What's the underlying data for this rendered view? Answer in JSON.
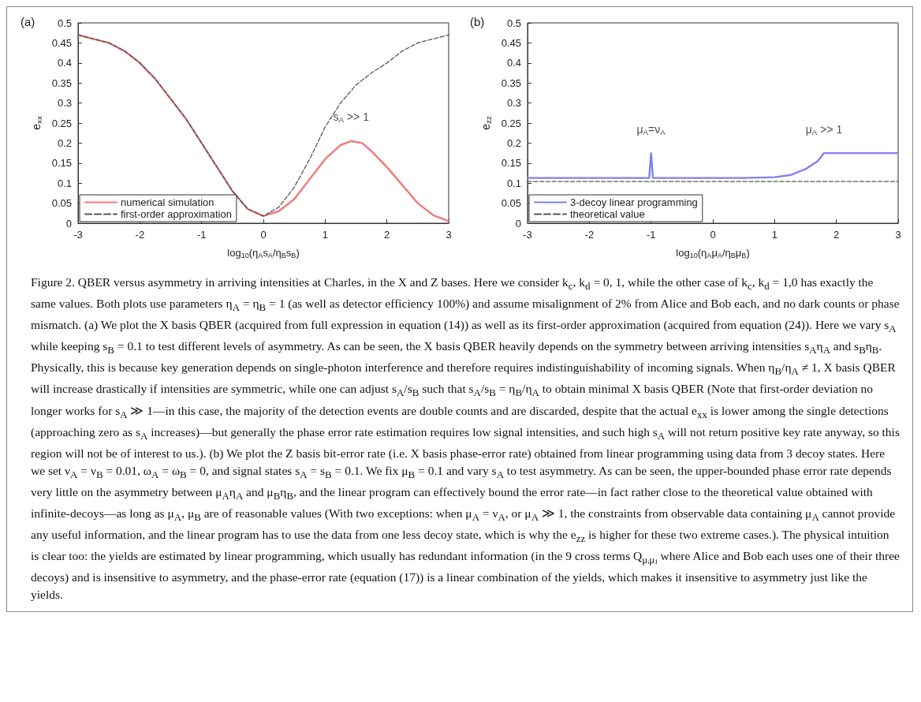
{
  "chart_data": [
    {
      "type": "line",
      "title": "(a)",
      "xlabel": "log$_{10}$(η$_{A}$s$_{A}$/η$_{B}$s$_{B}$)",
      "ylabel": "e$_{xx}$",
      "xlim": [
        -3,
        3
      ],
      "xticks": [
        -3,
        -2,
        -1,
        0,
        1,
        2,
        3
      ],
      "ylim": [
        0,
        0.5
      ],
      "yticks": [
        0,
        0.05,
        0.1,
        0.15,
        0.2,
        0.25,
        0.3,
        0.35,
        0.4,
        0.45,
        0.5
      ],
      "grid": false,
      "legend": "bottom left",
      "series": [
        {
          "name": "numerical simulation",
          "color": "#f07878",
          "line_style": "solid",
          "x": [
            -3,
            -2.75,
            -2.5,
            -2.25,
            -2,
            -1.75,
            -1.5,
            -1.25,
            -1,
            -0.75,
            -0.5,
            -0.25,
            0,
            0.25,
            0.5,
            0.75,
            1,
            1.25,
            1.42,
            1.6,
            1.75,
            2,
            2.25,
            2.5,
            2.75,
            3
          ],
          "values": [
            0.47,
            0.46,
            0.45,
            0.43,
            0.4,
            0.36,
            0.31,
            0.26,
            0.2,
            0.14,
            0.08,
            0.035,
            0.018,
            0.03,
            0.06,
            0.11,
            0.16,
            0.195,
            0.205,
            0.2,
            0.18,
            0.14,
            0.095,
            0.05,
            0.02,
            0.005
          ]
        },
        {
          "name": "first-order approximation",
          "color": "#555555",
          "line_style": "dashed",
          "x": [
            -3,
            -2.75,
            -2.5,
            -2.25,
            -2,
            -1.75,
            -1.5,
            -1.25,
            -1,
            -0.75,
            -0.5,
            -0.25,
            0,
            0.25,
            0.5,
            0.75,
            1,
            1.25,
            1.5,
            1.75,
            2,
            2.25,
            2.5,
            2.75,
            3
          ],
          "values": [
            0.47,
            0.46,
            0.45,
            0.43,
            0.4,
            0.36,
            0.31,
            0.26,
            0.2,
            0.14,
            0.08,
            0.035,
            0.018,
            0.04,
            0.09,
            0.16,
            0.24,
            0.3,
            0.345,
            0.375,
            0.4,
            0.43,
            0.45,
            0.46,
            0.47
          ]
        }
      ],
      "annotations": [
        {
          "text": "s$_{A}$ >> 1",
          "x": 1.42,
          "y": 0.205
        }
      ]
    },
    {
      "type": "line",
      "title": "(b)",
      "xlabel": "log$_{10}$(η$_{A}$μ$_{A}$/η$_{B}$μ$_{B}$)",
      "ylabel": "e$_{zz}$",
      "xlim": [
        -3,
        3
      ],
      "xticks": [
        -3,
        -2,
        -1,
        0,
        1,
        2,
        3
      ],
      "ylim": [
        0,
        0.5
      ],
      "yticks": [
        0,
        0.05,
        0.1,
        0.15,
        0.2,
        0.25,
        0.3,
        0.35,
        0.4,
        0.45,
        0.5
      ],
      "grid": false,
      "legend": "bottom left",
      "series": [
        {
          "name": "3-decoy linear programming",
          "color": "#8080f0",
          "line_style": "solid",
          "x": [
            -3,
            -2,
            -1.03,
            -1,
            -0.97,
            0,
            0.5,
            1,
            1.25,
            1.5,
            1.7,
            1.8,
            2,
            3
          ],
          "values": [
            0.113,
            0.113,
            0.113,
            0.175,
            0.113,
            0.113,
            0.113,
            0.115,
            0.12,
            0.135,
            0.155,
            0.175,
            0.175,
            0.175
          ]
        },
        {
          "name": "theoretical value",
          "color": "#555555",
          "line_style": "dashed",
          "x": [
            -3,
            3
          ],
          "values": [
            0.104,
            0.104
          ]
        }
      ],
      "annotations": [
        {
          "text": "μ$_{A}$=ν$_{A}$",
          "x": -1,
          "y": 0.175
        },
        {
          "text": "μ$_{A}$ >> 1",
          "x": 1.8,
          "y": 0.175
        },
        "Figure 2. QBER versus asymmetry in arriving intensities at Charles, in the X and Z bases. Here we consider k$_{c}$, k$_{d}$ = 0, 1, while the other case of k$_{c}$, k$_{d}$ = 1,0 has exactly the same values. Both plots use parameters η$_{A}$ = η$_{B}$ = 1 (as well as detector efficiency 100%) and assume misalignment of 2% from Alice and Bob each, and no dark counts or phase mismatch. (a) We plot the X basis QBER (acquired from full expression in equation (14)) as well as its first-order approximation (acquired from equation (24)). Here we vary s$_{A}$ while keeping s$_{B}$ = 0.1 to test different levels of asymmetry. As can be seen, the X basis QBER heavily depends on the symmetry between arriving intensities s$_{A}$η$_{A}$ and s$_{B}$η$_{B}$. Physically, this is because key generation depends on single-photon interference and therefore requires indistinguishability of incoming signals. When η$_{B}$/η$_{A}$ ≠ 1, X basis QBER will increase drastically if intensities are symmetric, while one can adjust s$_{A}$/s$_{B}$ such that s$_{A}$/s$_{B}$ = η$_{B}$/η$_{A}$ to obtain minimal X basis QBER (Note that first-order deviation no longer works for s$_{A}$ ≫ 1—in this case, the majority of the detection events are double counts and are discarded, despite that the actual e$_{xx}$ is lower among the single detections (approaching zero as s$_{A}$ increases)—but generally the phase error rate estimation requires low signal intensities, and such high s$_{A}$ will not return positive key rate anyway, so this region will not be of interest to us.). (b) We plot the Z basis bit-error rate (i.e. X basis phase-error rate) obtained from linear programming using data from 3 decoy states. Here we set ν$_{A}$ = ν$_{B}$ = 0.01, ω$_{A}$ = ω$_{B}$ = 0, and signal states s$_{A}$ = s$_{B}$ = 0.1. We fix μ$_{B}$ = 0.1 and vary s$_{A}$ to test asymmetry. As can be seen, the upper-bounded phase error rate depends very little on the asymmetry between μ$_{A}$η$_{A}$ and μ$_{B}$η$_{B}$, and the linear program can effectively bound the error rate—in fact rather close to the theoretical value obtained with infinite-decoys—as long as μ$_{A}$, μ$_{B}$ are of reasonable values (With two exceptions: when μ$_{A}$ = ν$_{A}$, or μ$_{A}$ ≫ 1, the constraints from observable data containing μ$_{A}$ cannot provide any useful information, and the linear program has to use the data from one less decoy state, which is why the e$_{zz}$ is higher for these two extreme cases.). The physical intuition is clear too: the yields are estimated by linear programming, which usually has redundant information (in the 9 cross terms Q$_{μᵢμⱼ}$ where Alice and Bob each uses one of their three decoys) and is insensitive to asymmetry, and the phase-error rate (equation (17)) is a linear combination of the yields, which makes it insensitive to asymmetry just like the yields."
      ]
    }
  ]
}
